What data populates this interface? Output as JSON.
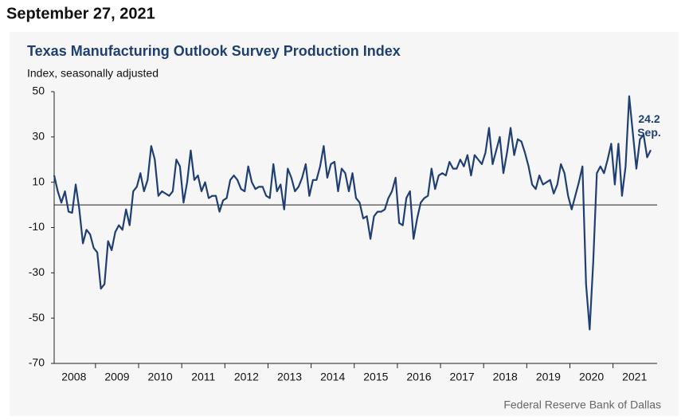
{
  "date": "September 27, 2021",
  "chart_data": {
    "type": "line",
    "title": "Texas Manufacturing Outlook Survey Production Index",
    "subtitle": "Index, seasonally adjusted",
    "source": "Federal Reserve Bank of Dallas",
    "annotation": "Sep.",
    "categories": [
      null,
      null,
      null,
      null,
      null,
      "2008",
      null,
      null,
      null,
      null,
      null,
      null,
      null,
      null,
      null,
      null,
      null,
      "2009",
      null,
      null,
      null,
      null,
      null,
      null,
      null,
      null,
      null,
      null,
      null,
      "2010",
      null,
      null,
      null,
      null,
      null,
      null,
      null,
      null,
      null,
      null,
      null,
      "2011",
      null,
      null,
      null,
      null,
      null,
      null,
      null,
      null,
      null,
      null,
      null,
      "2012",
      null,
      null,
      null,
      null,
      null,
      null,
      null,
      null,
      null,
      null,
      null,
      "2013",
      null,
      null,
      null,
      null,
      null,
      null,
      null,
      null,
      null,
      null,
      null,
      "2014",
      null,
      null,
      null,
      null,
      null,
      null,
      null,
      null,
      null,
      null,
      null,
      "2015",
      null,
      null,
      null,
      null,
      null,
      null,
      null,
      null,
      null,
      null,
      null,
      "2016",
      null,
      null,
      null,
      null,
      null,
      null,
      null,
      null,
      null,
      null,
      null,
      "2017",
      null,
      null,
      null,
      null,
      null,
      null,
      null,
      null,
      null,
      null,
      null,
      "2018",
      null,
      null,
      null,
      null,
      null,
      null,
      null,
      null,
      null,
      null,
      null,
      "2019",
      null,
      null,
      null,
      null,
      null,
      null,
      null,
      null,
      null,
      null,
      null,
      "2020",
      null,
      null,
      null,
      null,
      null,
      null,
      null,
      null,
      null,
      null,
      null,
      "2021",
      null,
      null,
      null,
      null,
      null
    ],
    "series": [
      {
        "name": "Production Index",
        "color": "#1f3f73",
        "values": [
          13,
          6,
          1,
          6,
          -3,
          -3.5,
          9,
          -2,
          -17,
          -11,
          -13,
          -19,
          -21,
          -37,
          -35,
          -16,
          -20,
          -12,
          -9,
          -11,
          -2,
          -9,
          6,
          8,
          14,
          6,
          11,
          26,
          20,
          4,
          6,
          5,
          4,
          6,
          20,
          17,
          1,
          10,
          24,
          11,
          13,
          6,
          10,
          3,
          4,
          4,
          -3,
          2,
          3,
          11,
          13,
          11,
          7,
          6,
          17,
          10,
          7,
          8,
          8,
          4,
          3,
          18,
          6,
          9,
          -2,
          16,
          12,
          6,
          8,
          12,
          18,
          4,
          11,
          11,
          17,
          26,
          12,
          18,
          19,
          6,
          16,
          14,
          6,
          14,
          3,
          1,
          -6,
          -5,
          -15,
          -5,
          -3,
          -3,
          -2,
          3,
          6,
          12,
          -8,
          -9,
          3,
          6,
          -15,
          -6,
          1,
          3,
          4,
          16,
          7,
          13,
          14,
          13,
          19,
          16,
          16,
          20,
          17,
          22,
          13,
          22,
          20,
          18,
          23,
          34,
          18,
          24,
          30,
          14,
          23,
          34,
          22,
          29,
          28,
          23,
          17,
          9,
          7,
          13,
          9,
          10,
          11,
          5,
          9,
          18,
          14,
          4,
          -2,
          4,
          10,
          17,
          -35,
          -55,
          -25,
          14,
          17,
          14,
          20,
          27,
          9,
          27,
          4,
          17,
          48,
          32,
          16,
          29,
          31,
          21,
          24.2
        ]
      }
    ],
    "ylim": [
      -70,
      50
    ],
    "yticks": [
      -70,
      -50,
      -30,
      -10,
      10,
      30,
      50
    ]
  }
}
